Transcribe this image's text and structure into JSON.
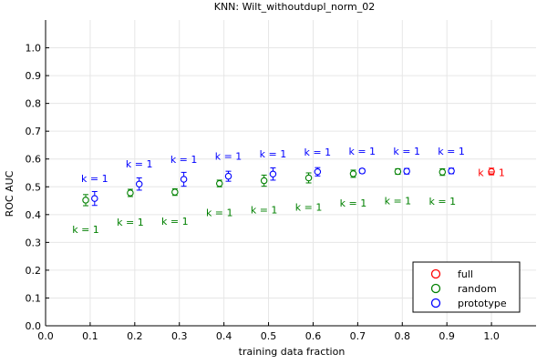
{
  "chart_data": {
    "type": "scatter",
    "title": "KNN: Wilt_withoutdupl_norm_02",
    "xlabel": "training data fraction",
    "ylabel": "ROC AUC",
    "xlim": [
      0.0,
      1.1
    ],
    "ylim": [
      0.0,
      1.1
    ],
    "xticks": [
      "0.0",
      "0.1",
      "0.2",
      "0.3",
      "0.4",
      "0.5",
      "0.6",
      "0.7",
      "0.8",
      "0.9",
      "1.0"
    ],
    "yticks": [
      "0.0",
      "0.1",
      "0.2",
      "0.3",
      "0.4",
      "0.5",
      "0.6",
      "0.7",
      "0.8",
      "0.9",
      "1.0"
    ],
    "grid": true,
    "legend_position": "bottom-right",
    "series": [
      {
        "name": "full",
        "color": "#ff0000",
        "points": [
          {
            "x": 1.0,
            "y": 0.555,
            "err": 0.012,
            "label": "k = 1"
          }
        ]
      },
      {
        "name": "random",
        "color": "#008000",
        "points": [
          {
            "x": 0.09,
            "y": 0.452,
            "err": 0.02,
            "label": "k = 1"
          },
          {
            "x": 0.19,
            "y": 0.478,
            "err": 0.013,
            "label": "k = 1"
          },
          {
            "x": 0.29,
            "y": 0.481,
            "err": 0.012,
            "label": "k = 1"
          },
          {
            "x": 0.39,
            "y": 0.512,
            "err": 0.012,
            "label": "k = 1"
          },
          {
            "x": 0.49,
            "y": 0.522,
            "err": 0.02,
            "label": "k = 1"
          },
          {
            "x": 0.59,
            "y": 0.532,
            "err": 0.018,
            "label": "k = 1"
          },
          {
            "x": 0.69,
            "y": 0.547,
            "err": 0.013,
            "label": "k = 1"
          },
          {
            "x": 0.79,
            "y": 0.555,
            "err": 0.01,
            "label": "k = 1"
          },
          {
            "x": 0.89,
            "y": 0.553,
            "err": 0.012,
            "label": "k = 1"
          }
        ]
      },
      {
        "name": "prototype",
        "color": "#0000ff",
        "points": [
          {
            "x": 0.11,
            "y": 0.458,
            "err": 0.025,
            "label": "k = 1"
          },
          {
            "x": 0.21,
            "y": 0.51,
            "err": 0.022,
            "label": "k = 1"
          },
          {
            "x": 0.31,
            "y": 0.527,
            "err": 0.025,
            "label": "k = 1"
          },
          {
            "x": 0.41,
            "y": 0.538,
            "err": 0.018,
            "label": "k = 1"
          },
          {
            "x": 0.51,
            "y": 0.546,
            "err": 0.022,
            "label": "k = 1"
          },
          {
            "x": 0.61,
            "y": 0.554,
            "err": 0.015,
            "label": "k = 1"
          },
          {
            "x": 0.71,
            "y": 0.557,
            "err": 0.008,
            "label": "k = 1"
          },
          {
            "x": 0.81,
            "y": 0.556,
            "err": 0.01,
            "label": "k = 1"
          },
          {
            "x": 0.91,
            "y": 0.557,
            "err": 0.01,
            "label": "k = 1"
          }
        ]
      }
    ]
  }
}
